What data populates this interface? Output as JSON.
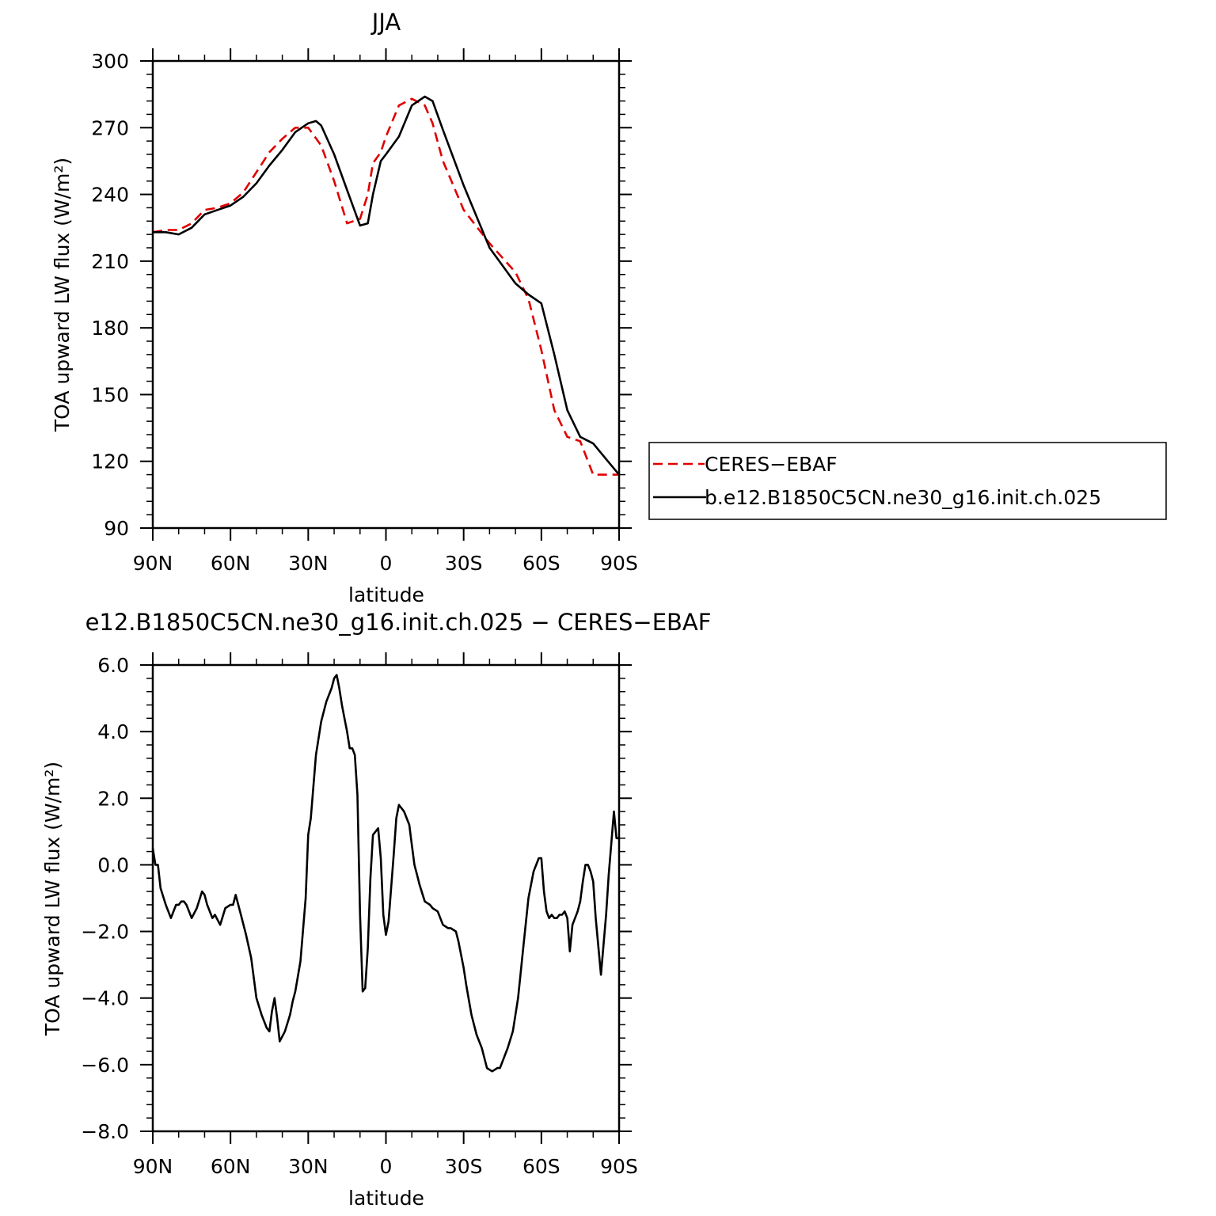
{
  "chart_data": [
    {
      "type": "line",
      "title": "JJA",
      "xlabel": "latitude",
      "ylabel": "TOA upward LW flux (W/m²)",
      "xlim": [
        -90,
        90
      ],
      "ylim": [
        90,
        300
      ],
      "x_ticks": [
        -90,
        -60,
        -30,
        0,
        30,
        60,
        90
      ],
      "x_tick_labels": [
        "90N",
        "60N",
        "30N",
        "0",
        "30S",
        "60S",
        "90S"
      ],
      "y_ticks": [
        90,
        120,
        150,
        180,
        210,
        240,
        270,
        300
      ],
      "y_tick_labels": [
        "90",
        "120",
        "150",
        "180",
        "210",
        "240",
        "270",
        "300"
      ],
      "grid": false,
      "legend_placement": "right",
      "series": [
        {
          "name": "CERES−EBAF",
          "color": "#e00000",
          "dash": "dashed",
          "x": [
            -90,
            -85,
            -80,
            -75,
            -70,
            -65,
            -60,
            -55,
            -50,
            -45,
            -40,
            -35,
            -30,
            -25,
            -20,
            -15,
            -10,
            -7,
            -5,
            -2,
            0,
            5,
            10,
            15,
            18,
            22,
            30,
            40,
            50,
            55,
            60,
            65,
            70,
            75,
            80,
            85,
            90
          ],
          "y": [
            223,
            224,
            224,
            227,
            233,
            234,
            236,
            241,
            250,
            259,
            265,
            270,
            270,
            262,
            246,
            227,
            229,
            240,
            254,
            259,
            266,
            280,
            283,
            280,
            272,
            255,
            233,
            218,
            205,
            193,
            170,
            143,
            131,
            129,
            114,
            114,
            114
          ]
        },
        {
          "name": "b.e12.B1850C5CN.ne30_g16.init.ch.025",
          "color": "#000000",
          "dash": "solid",
          "x": [
            -90,
            -85,
            -80,
            -75,
            -70,
            -65,
            -60,
            -55,
            -50,
            -45,
            -40,
            -35,
            -30,
            -27,
            -25,
            -20,
            -15,
            -10,
            -7,
            -5,
            -2,
            0,
            5,
            10,
            15,
            18,
            22,
            30,
            40,
            50,
            55,
            60,
            65,
            70,
            75,
            80,
            85,
            90
          ],
          "y": [
            223,
            223,
            222,
            225,
            231,
            233,
            235,
            239,
            245,
            253,
            260,
            268,
            272,
            273,
            271,
            258,
            242,
            226,
            227,
            240,
            255,
            258,
            266,
            280,
            284,
            282,
            269,
            244,
            216,
            200,
            195,
            191,
            168,
            143,
            131,
            128,
            121,
            114
          ]
        }
      ],
      "legend": [
        "CERES−EBAF",
        "b.e12.B1850C5CN.ne30_g16.init.ch.025"
      ]
    },
    {
      "type": "line",
      "title": "e12.B1850C5CN.ne30_g16.init.ch.025 − CERES−EBAF",
      "xlabel": "latitude",
      "ylabel": "TOA upward LW flux (W/m²)",
      "xlim": [
        -90,
        90
      ],
      "ylim": [
        -8,
        6
      ],
      "x_ticks": [
        -90,
        -60,
        -30,
        0,
        30,
        60,
        90
      ],
      "x_tick_labels": [
        "90N",
        "60N",
        "30N",
        "0",
        "30S",
        "60S",
        "90S"
      ],
      "y_ticks": [
        -8,
        -6,
        -4,
        -2,
        0,
        2,
        4,
        6
      ],
      "y_tick_labels": [
        "−8.0",
        "−6.0",
        "−4.0",
        "−2.0",
        "0.0",
        "2.0",
        "4.0",
        "6.0"
      ],
      "grid": false,
      "series": [
        {
          "color": "#000000",
          "dash": "solid",
          "x": [
            -90,
            -89,
            -88,
            -87,
            -85,
            -83,
            -81,
            -80,
            -79,
            -78,
            -77,
            -75,
            -73,
            -71,
            -70,
            -69,
            -67,
            -66,
            -64,
            -62,
            -60,
            -59,
            -58,
            -56,
            -54,
            -52,
            -50,
            -48,
            -46,
            -45,
            -44,
            -43,
            -42,
            -41,
            -39,
            -37,
            -36,
            -35,
            -33,
            -31,
            -30,
            -29,
            -27,
            -25,
            -23,
            -21,
            -20,
            -19,
            -18,
            -17,
            -16,
            -15,
            -14,
            -13,
            -12,
            -11,
            -10,
            -9,
            -8,
            -7,
            -6,
            -5,
            -3,
            -2,
            -1,
            0,
            1,
            3,
            4,
            5,
            7,
            9,
            10,
            11,
            12,
            13,
            15,
            17,
            18,
            20,
            22,
            24,
            25,
            27,
            28,
            29,
            30,
            31,
            33,
            35,
            37,
            39,
            41,
            43,
            44,
            45,
            47,
            49,
            51,
            53,
            55,
            57,
            59,
            60,
            61,
            62,
            63,
            64,
            65,
            66,
            67,
            68,
            69,
            70,
            71,
            72,
            74,
            75,
            76,
            77,
            78,
            79,
            80,
            81,
            83,
            85,
            86,
            88,
            89,
            90
          ],
          "y": [
            0.5,
            0.0,
            0.0,
            -0.7,
            -1.2,
            -1.6,
            -1.2,
            -1.2,
            -1.1,
            -1.1,
            -1.2,
            -1.6,
            -1.3,
            -0.8,
            -0.9,
            -1.2,
            -1.6,
            -1.5,
            -1.8,
            -1.3,
            -1.2,
            -1.2,
            -0.9,
            -1.5,
            -2.1,
            -2.8,
            -4.0,
            -4.5,
            -4.9,
            -5.0,
            -4.4,
            -4.0,
            -4.6,
            -5.3,
            -5.0,
            -4.5,
            -4.1,
            -3.8,
            -2.9,
            -1.0,
            0.9,
            1.4,
            3.3,
            4.3,
            4.9,
            5.3,
            5.6,
            5.7,
            5.3,
            4.8,
            4.4,
            4.0,
            3.5,
            3.5,
            3.3,
            2.1,
            -1.5,
            -3.8,
            -3.7,
            -2.5,
            -0.4,
            0.9,
            1.1,
            0.2,
            -1.5,
            -2.1,
            -1.7,
            0.3,
            1.4,
            1.8,
            1.6,
            1.2,
            0.6,
            0.0,
            -0.3,
            -0.6,
            -1.1,
            -1.2,
            -1.3,
            -1.4,
            -1.8,
            -1.9,
            -1.9,
            -2.0,
            -2.3,
            -2.7,
            -3.1,
            -3.6,
            -4.5,
            -5.1,
            -5.5,
            -6.1,
            -6.2,
            -6.1,
            -6.1,
            -5.9,
            -5.5,
            -5.0,
            -4.0,
            -2.5,
            -1.0,
            -0.2,
            0.2,
            0.2,
            -0.8,
            -1.4,
            -1.6,
            -1.5,
            -1.6,
            -1.6,
            -1.5,
            -1.5,
            -1.4,
            -1.6,
            -2.6,
            -1.8,
            -1.4,
            -1.1,
            -0.5,
            0.0,
            0.0,
            -0.2,
            -0.5,
            -1.6,
            -3.3,
            -1.5,
            -0.3,
            1.6,
            0.8,
            0.8
          ]
        }
      ]
    }
  ]
}
